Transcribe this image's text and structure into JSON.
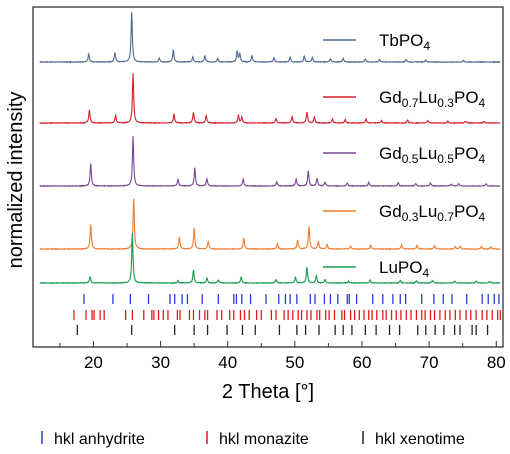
{
  "chart_data": {
    "type": "line",
    "xlabel": "2 Theta [°]",
    "ylabel": "normalized intensity",
    "xlim": [
      11,
      81
    ],
    "x_ticks": [
      20,
      30,
      40,
      50,
      60,
      70,
      80
    ],
    "grid": false,
    "legend_placement": "inline-right-of-each-trace",
    "series": [
      {
        "name": "TbPO4",
        "name_parts": [
          {
            "t": "TbPO",
            "sub": false
          },
          {
            "t": "4",
            "sub": true
          }
        ],
        "color": "#4f6a8f",
        "peaks": [
          [
            19.3,
            0.16
          ],
          [
            23.2,
            0.19
          ],
          [
            25.7,
            1.0
          ],
          [
            29.8,
            0.08
          ],
          [
            31.9,
            0.24
          ],
          [
            34.8,
            0.1
          ],
          [
            36.6,
            0.12
          ],
          [
            38.5,
            0.07
          ],
          [
            41.4,
            0.22
          ],
          [
            41.8,
            0.17
          ],
          [
            43.6,
            0.13
          ],
          [
            46.9,
            0.09
          ],
          [
            49.3,
            0.1
          ],
          [
            51.4,
            0.12
          ],
          [
            52.6,
            0.09
          ],
          [
            55.3,
            0.07
          ],
          [
            57.2,
            0.07
          ],
          [
            60.5,
            0.06
          ],
          [
            62.6,
            0.05
          ],
          [
            66.6,
            0.05
          ],
          [
            69.5,
            0.04
          ],
          [
            75.1,
            0.03
          ]
        ]
      },
      {
        "name": "Gd0.7Lu0.3PO4",
        "name_parts": [
          {
            "t": "Gd",
            "sub": false
          },
          {
            "t": "0.7",
            "sub": true
          },
          {
            "t": "Lu",
            "sub": false
          },
          {
            "t": "0.3",
            "sub": true
          },
          {
            "t": "PO",
            "sub": false
          },
          {
            "t": "4",
            "sub": true
          }
        ],
        "color": "#d62027",
        "peaks": [
          [
            19.4,
            0.26
          ],
          [
            23.3,
            0.16
          ],
          [
            25.9,
            1.0
          ],
          [
            32.0,
            0.18
          ],
          [
            34.9,
            0.22
          ],
          [
            36.8,
            0.15
          ],
          [
            41.6,
            0.16
          ],
          [
            42.1,
            0.11
          ],
          [
            47.2,
            0.09
          ],
          [
            49.6,
            0.13
          ],
          [
            51.8,
            0.22
          ],
          [
            52.9,
            0.12
          ],
          [
            55.6,
            0.08
          ],
          [
            57.5,
            0.07
          ],
          [
            60.6,
            0.08
          ],
          [
            62.9,
            0.05
          ],
          [
            66.8,
            0.06
          ],
          [
            69.8,
            0.05
          ],
          [
            72.8,
            0.04
          ],
          [
            75.4,
            0.04
          ],
          [
            78.2,
            0.03
          ]
        ]
      },
      {
        "name": "Gd0.5Lu0.5PO4",
        "name_parts": [
          {
            "t": "Gd",
            "sub": false
          },
          {
            "t": "0.5",
            "sub": true
          },
          {
            "t": "Lu",
            "sub": false
          },
          {
            "t": "0.5",
            "sub": true
          },
          {
            "t": "PO",
            "sub": false
          },
          {
            "t": "4",
            "sub": true
          }
        ],
        "color": "#7a4896",
        "peaks": [
          [
            19.6,
            0.45
          ],
          [
            25.9,
            1.0
          ],
          [
            32.6,
            0.14
          ],
          [
            35.1,
            0.36
          ],
          [
            36.9,
            0.15
          ],
          [
            42.3,
            0.14
          ],
          [
            47.3,
            0.09
          ],
          [
            50.2,
            0.14
          ],
          [
            52.0,
            0.31
          ],
          [
            53.3,
            0.15
          ],
          [
            54.5,
            0.08
          ],
          [
            57.8,
            0.06
          ],
          [
            61.0,
            0.07
          ],
          [
            65.4,
            0.07
          ],
          [
            68.0,
            0.05
          ],
          [
            70.2,
            0.06
          ],
          [
            73.3,
            0.04
          ],
          [
            74.4,
            0.05
          ],
          [
            78.5,
            0.04
          ]
        ]
      },
      {
        "name": "Gd0.3Lu0.7PO4",
        "name_parts": [
          {
            "t": "Gd",
            "sub": false
          },
          {
            "t": "0.3",
            "sub": true
          },
          {
            "t": "Lu",
            "sub": false
          },
          {
            "t": "0.7",
            "sub": true
          },
          {
            "t": "PO",
            "sub": false
          },
          {
            "t": "4",
            "sub": true
          }
        ],
        "color": "#ee7d31",
        "peaks": [
          [
            19.6,
            0.49
          ],
          [
            26.0,
            1.0
          ],
          [
            32.8,
            0.24
          ],
          [
            35.0,
            0.42
          ],
          [
            37.1,
            0.16
          ],
          [
            42.4,
            0.22
          ],
          [
            47.4,
            0.1
          ],
          [
            50.4,
            0.18
          ],
          [
            52.1,
            0.45
          ],
          [
            53.5,
            0.15
          ],
          [
            54.8,
            0.09
          ],
          [
            58.3,
            0.06
          ],
          [
            61.3,
            0.08
          ],
          [
            65.9,
            0.08
          ],
          [
            68.2,
            0.07
          ],
          [
            70.8,
            0.07
          ],
          [
            73.9,
            0.05
          ],
          [
            74.6,
            0.06
          ],
          [
            77.8,
            0.05
          ],
          [
            79.2,
            0.04
          ]
        ]
      },
      {
        "name": "LuPO4",
        "name_parts": [
          {
            "t": "LuPO",
            "sub": false
          },
          {
            "t": "4",
            "sub": true
          }
        ],
        "color": "#1a9a50",
        "peaks": [
          [
            19.5,
            0.13
          ],
          [
            25.8,
            1.0
          ],
          [
            32.6,
            0.05
          ],
          [
            34.9,
            0.26
          ],
          [
            36.9,
            0.1
          ],
          [
            38.6,
            0.06
          ],
          [
            42.0,
            0.12
          ],
          [
            47.2,
            0.07
          ],
          [
            50.1,
            0.11
          ],
          [
            51.8,
            0.32
          ],
          [
            53.2,
            0.14
          ],
          [
            54.5,
            0.07
          ],
          [
            58.0,
            0.04
          ],
          [
            61.2,
            0.06
          ],
          [
            65.7,
            0.05
          ],
          [
            68.1,
            0.05
          ],
          [
            70.5,
            0.05
          ],
          [
            73.8,
            0.04
          ],
          [
            77.0,
            0.04
          ],
          [
            79.0,
            0.03
          ]
        ]
      }
    ],
    "reference_sets": [
      {
        "name": "hkl anhydrite",
        "color": "#2a3bd6",
        "positions": [
          18.6,
          22.9,
          25.5,
          28.2,
          31.4,
          32.1,
          33.2,
          34.0,
          36.2,
          38.6,
          40.9,
          41.3,
          42.1,
          43.4,
          45.7,
          47.6,
          48.6,
          49.3,
          50.3,
          52.3,
          53.0,
          54.4,
          55.3,
          56.4,
          57.8,
          58.1,
          59.2,
          61.6,
          63.1,
          64.6,
          65.7,
          66.5,
          68.9,
          70.7,
          72.1,
          73.4,
          75.6,
          77.9,
          78.8,
          79.7,
          80.4
        ]
      },
      {
        "name": "hkl monazite",
        "color": "#e01b1b",
        "positions": [
          17.1,
          18.9,
          19.8,
          20.1,
          21.0,
          21.6,
          24.8,
          25.8,
          27.5,
          28.7,
          29.0,
          29.7,
          30.4,
          31.1,
          32.5,
          32.9,
          34.3,
          34.9,
          35.8,
          36.6,
          37.0,
          38.4,
          39.1,
          40.3,
          40.9,
          41.9,
          42.5,
          43.2,
          44.3,
          45.0,
          46.5,
          47.2,
          48.4,
          49.0,
          49.7,
          50.5,
          51.0,
          51.8,
          52.4,
          53.3,
          53.7,
          54.6,
          55.1,
          55.9,
          57.0,
          57.4,
          58.3,
          58.9,
          59.6,
          60.3,
          61.0,
          61.5,
          62.2,
          63.1,
          63.6,
          64.4,
          65.1,
          65.8,
          66.6,
          67.3,
          68.1,
          68.9,
          69.4,
          70.2,
          70.8,
          71.6,
          72.4,
          73.1,
          73.9,
          74.6,
          75.5,
          76.2,
          77.0,
          77.9,
          78.6,
          79.4,
          80.2,
          80.6
        ]
      },
      {
        "name": "hkl xenotime",
        "color": "#222222",
        "positions": [
          17.6,
          25.7,
          32.1,
          35.0,
          37.0,
          39.9,
          42.2,
          44.1,
          47.7,
          50.3,
          51.6,
          53.6,
          56.0,
          57.2,
          58.5,
          60.5,
          62.1,
          64.1,
          65.6,
          68.3,
          69.5,
          70.9,
          72.2,
          73.8,
          74.6,
          76.4,
          77.0,
          78.7
        ]
      }
    ]
  }
}
